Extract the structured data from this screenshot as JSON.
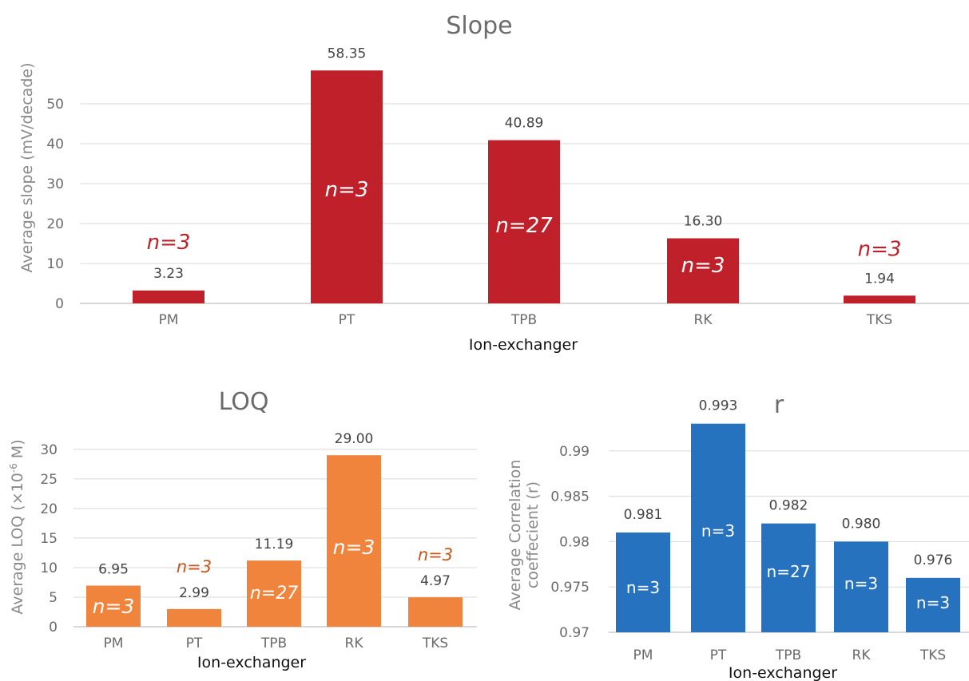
{
  "chart_data": [
    {
      "id": "slope",
      "type": "bar",
      "title": "Slope",
      "xlabel": "Ion-exchanger",
      "ylabel": "Average slope (mV/decade)",
      "categories": [
        "PM",
        "PT",
        "TPB",
        "RK",
        "TKS"
      ],
      "values": [
        3.23,
        58.35,
        40.89,
        16.3,
        1.94
      ],
      "data_labels": [
        "3.23",
        "58.35",
        "40.89",
        "16.30",
        "1.94"
      ],
      "n_labels": [
        "n=3",
        "n=3",
        "n=27",
        "n=3",
        "n=3"
      ],
      "ylim": [
        0,
        60
      ],
      "yticks": [
        0,
        10,
        20,
        30,
        40,
        50
      ],
      "ytick_labels": [
        "0",
        "10",
        "20",
        "30",
        "40",
        "50"
      ],
      "bar_color": "#c0202a",
      "n_label_color_outside": "#c0202a",
      "n_label_color_inside": "#ffffff",
      "grid": true
    },
    {
      "id": "loq",
      "type": "bar",
      "title": "LOQ",
      "xlabel": "Ion-exchanger",
      "ylabel": "Average LOQ (×10",
      "ylabel_sup": "-6",
      "ylabel_end": " M)",
      "categories": [
        "PM",
        "PT",
        "TPB",
        "RK",
        "TKS"
      ],
      "values": [
        6.95,
        2.99,
        11.19,
        29.0,
        4.97
      ],
      "data_labels": [
        "6.95",
        "2.99",
        "11.19",
        "29.00",
        "4.97"
      ],
      "n_labels": [
        "n=3",
        "n=3",
        "n=27",
        "n=3",
        "n=3"
      ],
      "ylim": [
        0,
        32
      ],
      "yticks": [
        0,
        5,
        10,
        15,
        20,
        25,
        30
      ],
      "ytick_labels": [
        "0",
        "5",
        "10",
        "15",
        "20",
        "25",
        "30"
      ],
      "bar_color": "#f0843c",
      "n_label_color_outside": "#c8561a",
      "n_label_color_inside": "#ffffff",
      "grid": true
    },
    {
      "id": "r",
      "type": "bar",
      "title": "r",
      "xlabel": "Ion-exchanger",
      "ylabel_line1": "Average Correlation",
      "ylabel_line2": "coeffecient (r)",
      "categories": [
        "PM",
        "PT",
        "TPB",
        "RK",
        "TKS"
      ],
      "values": [
        0.981,
        0.993,
        0.982,
        0.98,
        0.976
      ],
      "data_labels": [
        "0.981",
        "0.993",
        "0.982",
        "0.980",
        "0.976"
      ],
      "n_labels": [
        "n=3",
        "n=3",
        "n=27",
        "n=3",
        "n=3"
      ],
      "ylim": [
        0.97,
        0.9935
      ],
      "yticks": [
        0.97,
        0.975,
        0.98,
        0.985,
        0.99
      ],
      "ytick_labels": [
        "0.97",
        "0.975",
        "0.98",
        "0.985",
        "0.99"
      ],
      "bar_color": "#2672be",
      "n_label_color_inside": "#ffffff",
      "grid": true
    }
  ]
}
